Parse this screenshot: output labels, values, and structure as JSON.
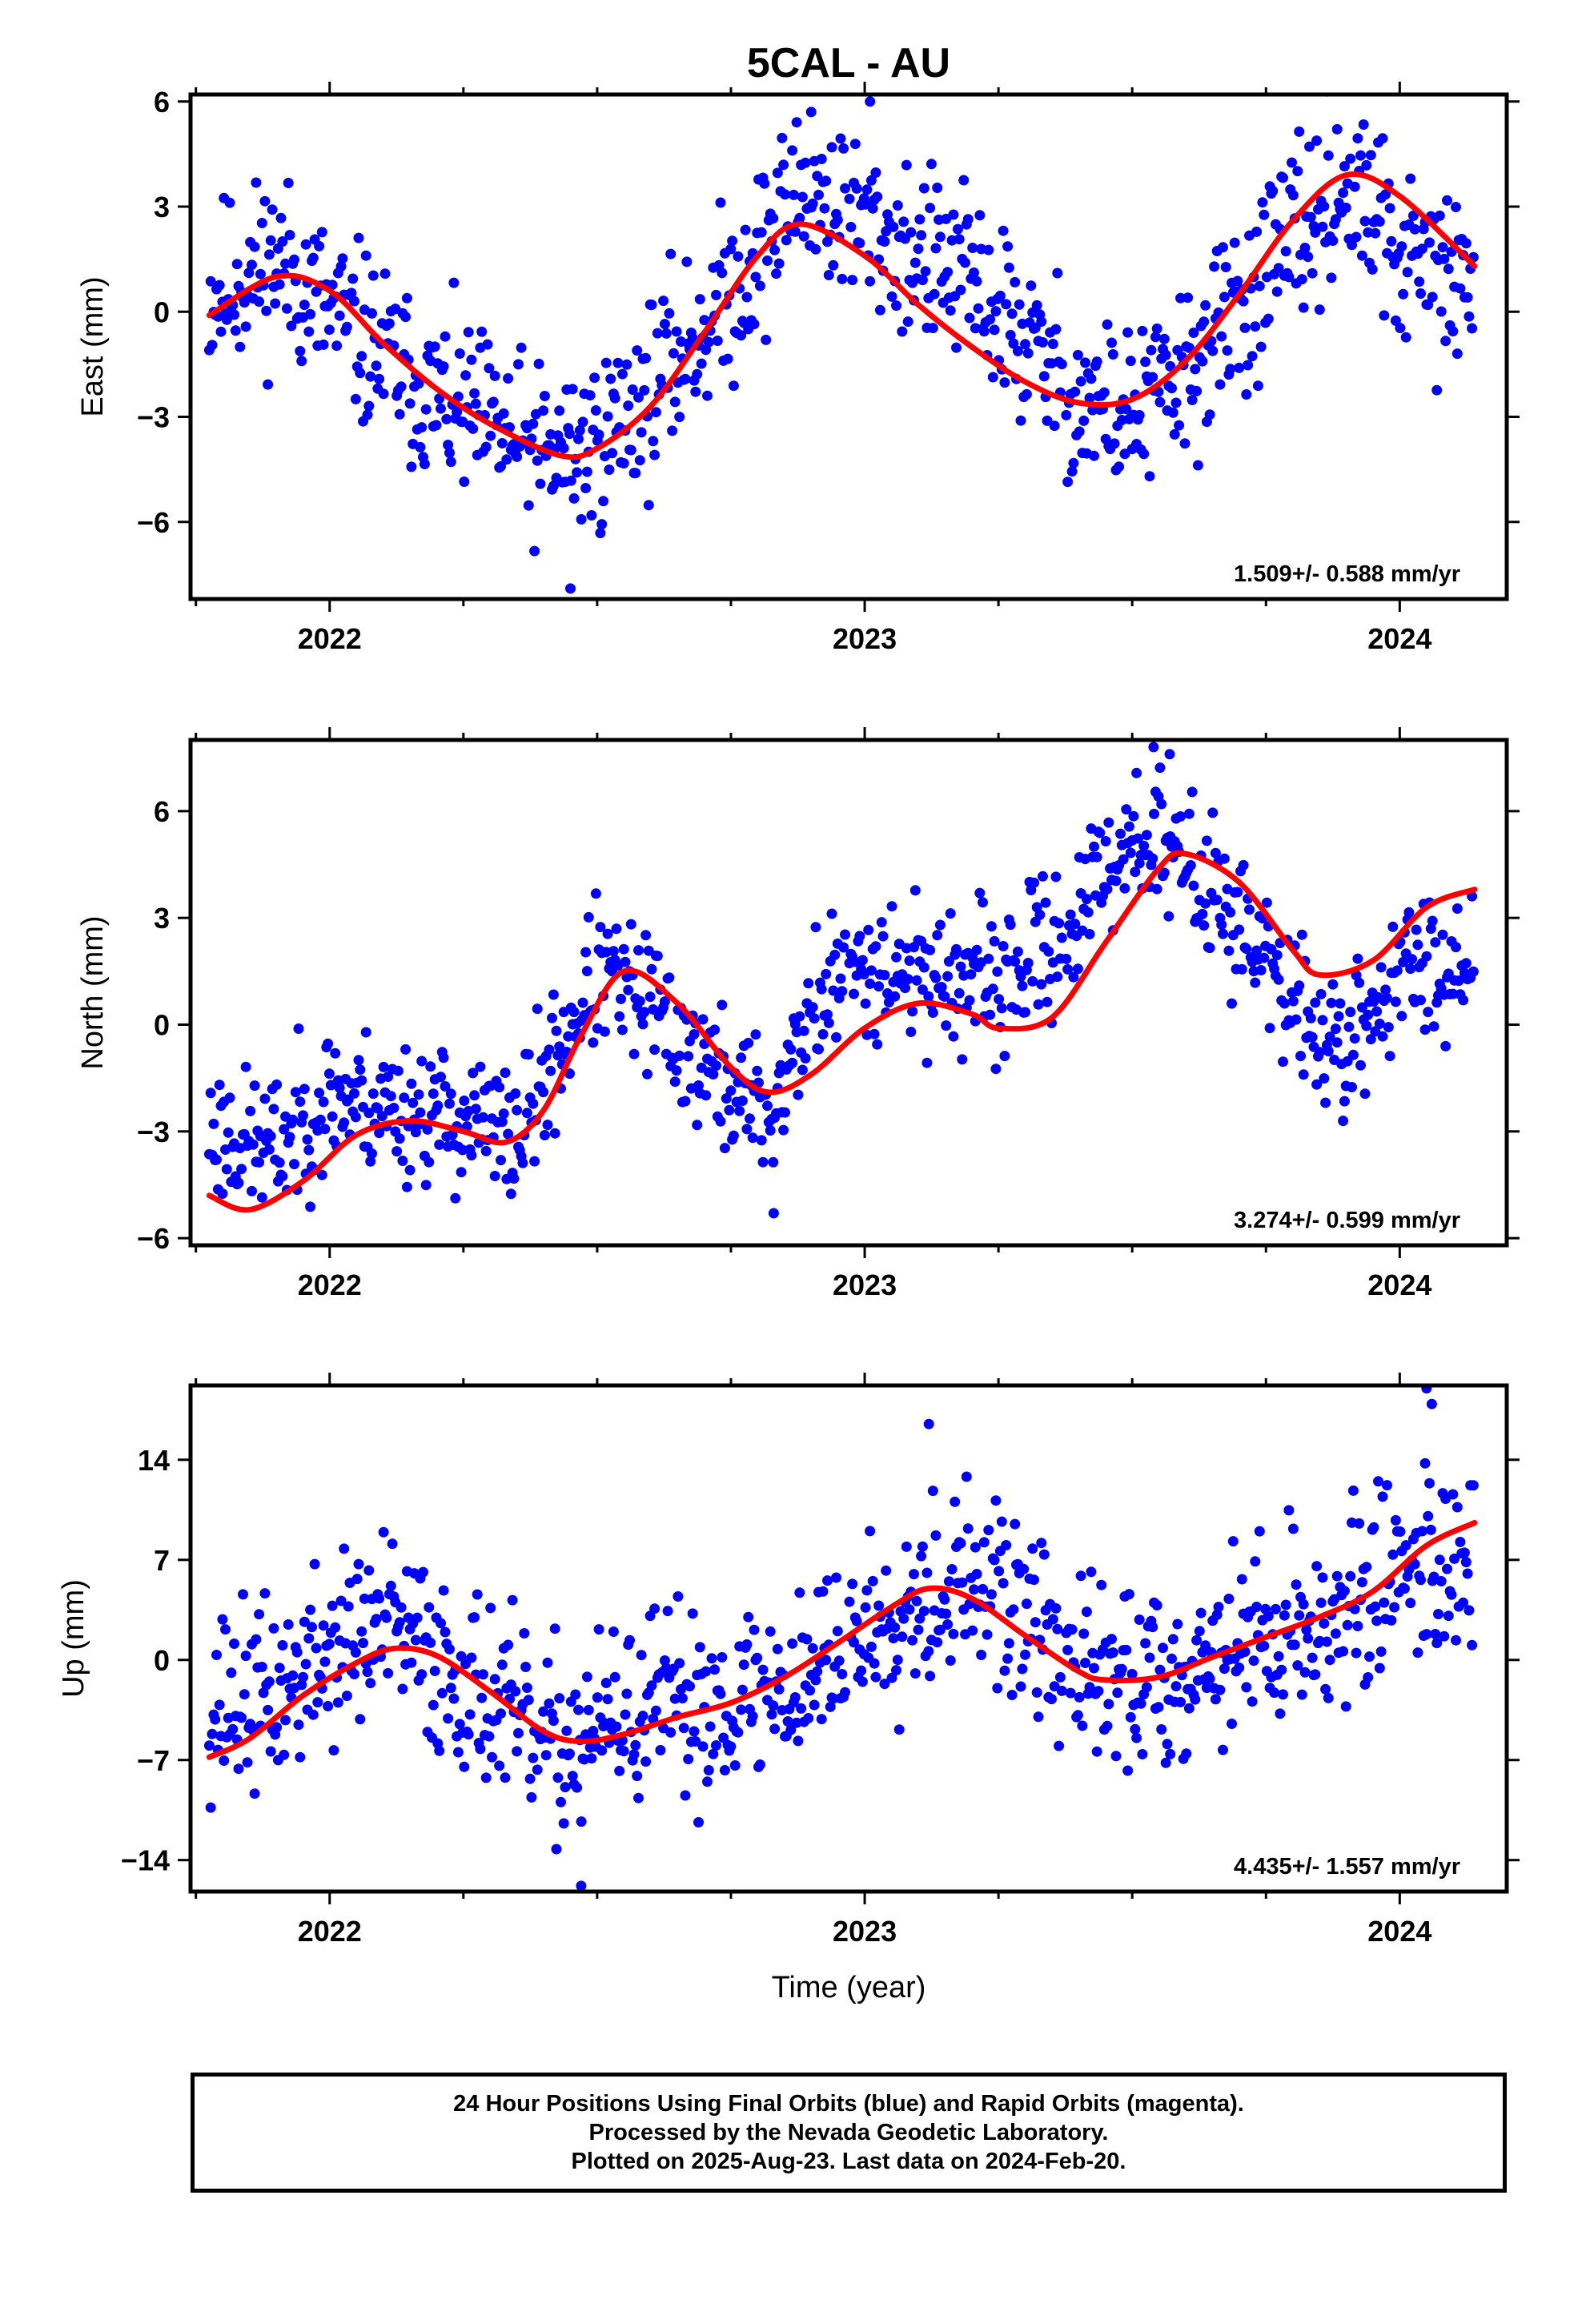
{
  "page": {
    "title": "5CAL - AU"
  },
  "colors": {
    "points": "#0000ff",
    "model": "#ff0000",
    "frame": "#000000"
  },
  "footer": {
    "lines": [
      "24 Hour Positions Using Final Orbits (blue) and Rapid Orbits (magenta).",
      "Processed by the Nevada Geodetic Laboratory.",
      "Plotted on 2025-Aug-23. Last data on 2024-Feb-20."
    ]
  },
  "chart_data": [
    {
      "type": "scatter",
      "id": "east",
      "ylabel": "East (mm)",
      "xlabel": "",
      "rate_label": "1.509+/- 0.588 mm/yr",
      "xlim": [
        2021.74,
        2024.2
      ],
      "ylim": [
        -8.2,
        6.2
      ],
      "x_ticks": [
        2022,
        2023,
        2024
      ],
      "y_ticks": [
        -6,
        -3,
        0,
        3,
        6
      ],
      "y_tick_labels": [
        "−6",
        "−3",
        "0",
        "3",
        "6"
      ],
      "series": [
        {
          "kind": "points",
          "x_start": 2021.775,
          "x_end": 2024.14,
          "gaps": [
            [
              2022.965,
              2022.97
            ],
            [
              2023.37,
              2023.375
            ]
          ],
          "scatter": 1.4,
          "seed": 11,
          "trend_x": [
            2021.775,
            2021.9,
            2022.0,
            2022.2,
            2022.4,
            2022.5,
            2022.6,
            2022.75,
            2022.88,
            2023.0,
            2023.2,
            2023.4,
            2023.5,
            2023.6,
            2023.75,
            2023.9,
            2024.0,
            2024.14
          ],
          "trend_y": [
            0.5,
            1.5,
            0.0,
            -2.5,
            -4.2,
            -3.8,
            -2.2,
            0.5,
            3.5,
            2.5,
            0.8,
            -2.5,
            -3.0,
            -1.8,
            1.0,
            3.8,
            1.5,
            0.5
          ],
          "outliers": [
            [
              2022.45,
              -7.9
            ],
            [
              2023.01,
              6.0
            ],
            [
              2022.9,
              5.7
            ]
          ]
        },
        {
          "kind": "model",
          "x": [
            2021.775,
            2021.9,
            2022.0,
            2022.1,
            2022.2,
            2022.3,
            2022.43,
            2022.5,
            2022.6,
            2022.7,
            2022.8,
            2022.88,
            2023.0,
            2023.1,
            2023.2,
            2023.3,
            2023.4,
            2023.5,
            2023.6,
            2023.7,
            2023.8,
            2023.9,
            2024.0,
            2024.14
          ],
          "y": [
            -0.1,
            1.0,
            0.6,
            -0.9,
            -2.2,
            -3.2,
            -4.1,
            -3.9,
            -2.7,
            -0.6,
            1.6,
            2.5,
            1.6,
            0.2,
            -1.0,
            -2.0,
            -2.6,
            -2.5,
            -1.4,
            0.5,
            2.6,
            3.9,
            3.3,
            1.3
          ]
        }
      ]
    },
    {
      "type": "scatter",
      "id": "north",
      "ylabel": "North (mm)",
      "xlabel": "",
      "rate_label": "3.274+/- 0.599 mm/yr",
      "xlim": [
        2021.74,
        2024.2
      ],
      "ylim": [
        -6.2,
        8.0
      ],
      "x_ticks": [
        2022,
        2023,
        2024
      ],
      "y_ticks": [
        -6,
        -3,
        0,
        3,
        6
      ],
      "y_tick_labels": [
        "−6",
        "−3",
        "0",
        "3",
        "6"
      ],
      "series": [
        {
          "kind": "points",
          "x_start": 2021.775,
          "x_end": 2024.14,
          "gaps": [
            [
              2022.965,
              2022.97
            ],
            [
              2023.37,
              2023.375
            ]
          ],
          "scatter": 1.1,
          "seed": 23,
          "trend_x": [
            2021.775,
            2021.9,
            2022.0,
            2022.2,
            2022.35,
            2022.5,
            2022.6,
            2022.72,
            2022.83,
            2022.9,
            2023.0,
            2023.1,
            2023.25,
            2023.4,
            2023.5,
            2023.6,
            2023.7,
            2023.8,
            2023.9,
            2024.0,
            2024.14
          ],
          "trend_y": [
            -3.0,
            -3.5,
            -2.0,
            -2.5,
            -3.2,
            1.5,
            0.5,
            -1.5,
            -2.5,
            0.5,
            1.8,
            1.5,
            1.0,
            3.0,
            5.5,
            4.5,
            3.0,
            0.5,
            -0.8,
            1.5,
            2.0
          ],
          "outliers": [
            [
              2022.83,
              -5.3
            ],
            [
              2023.54,
              7.8
            ],
            [
              2023.57,
              7.6
            ]
          ]
        },
        {
          "kind": "model",
          "x": [
            2021.775,
            2021.85,
            2021.95,
            2022.05,
            2022.15,
            2022.25,
            2022.33,
            2022.4,
            2022.47,
            2022.55,
            2022.65,
            2022.75,
            2022.82,
            2022.9,
            2023.0,
            2023.1,
            2023.2,
            2023.25,
            2023.35,
            2023.45,
            2023.55,
            2023.6,
            2023.7,
            2023.8,
            2023.85,
            2023.95,
            2024.05,
            2024.14
          ],
          "y": [
            -4.8,
            -5.2,
            -4.4,
            -3.1,
            -2.7,
            -3.0,
            -3.3,
            -2.4,
            -0.3,
            1.5,
            0.6,
            -1.2,
            -1.9,
            -1.4,
            -0.1,
            0.6,
            0.3,
            -0.1,
            0.2,
            2.3,
            4.4,
            4.8,
            4.0,
            2.1,
            1.4,
            1.8,
            3.3,
            3.8
          ]
        }
      ]
    },
    {
      "type": "scatter",
      "id": "up",
      "ylabel": "Up (mm)",
      "xlabel": "Time (year)",
      "rate_label": "4.435+/- 1.557 mm/yr",
      "xlim": [
        2021.74,
        2024.2
      ],
      "ylim": [
        -16.2,
        19.2
      ],
      "x_ticks": [
        2022,
        2023,
        2024
      ],
      "y_ticks": [
        -14,
        -7,
        0,
        7,
        14
      ],
      "y_tick_labels": [
        "−14",
        "−7",
        "0",
        "7",
        "14"
      ],
      "series": [
        {
          "kind": "points",
          "x_start": 2021.775,
          "x_end": 2024.14,
          "gaps": [
            [
              2022.965,
              2022.97
            ],
            [
              2023.37,
              2023.375
            ]
          ],
          "scatter": 3.6,
          "seed": 37,
          "trend_x": [
            2021.775,
            2021.9,
            2022.0,
            2022.1,
            2022.2,
            2022.3,
            2022.4,
            2022.5,
            2022.6,
            2022.7,
            2022.85,
            2023.0,
            2023.1,
            2023.2,
            2023.3,
            2023.4,
            2023.5,
            2023.6,
            2023.75,
            2023.9,
            2024.0,
            2024.14
          ],
          "trend_y": [
            -3.0,
            -2.5,
            0.5,
            2.5,
            0.0,
            -2.5,
            -6.5,
            -5.0,
            -3.5,
            -3.0,
            -2.0,
            2.0,
            5.0,
            5.5,
            3.0,
            -1.0,
            -1.5,
            -0.5,
            2.0,
            3.0,
            7.0,
            7.0
          ],
          "outliers": [
            [
              2022.47,
              -15.8
            ],
            [
              2023.12,
              16.5
            ],
            [
              2024.05,
              19.0
            ],
            [
              2024.06,
              17.9
            ]
          ]
        },
        {
          "kind": "model",
          "x": [
            2021.775,
            2021.85,
            2021.95,
            2022.05,
            2022.12,
            2022.2,
            2022.3,
            2022.4,
            2022.47,
            2022.55,
            2022.65,
            2022.75,
            2022.85,
            2022.95,
            2023.05,
            2023.12,
            2023.2,
            2023.3,
            2023.4,
            2023.45,
            2023.55,
            2023.65,
            2023.75,
            2023.85,
            2023.95,
            2024.05,
            2024.14
          ],
          "y": [
            -6.8,
            -5.5,
            -2.5,
            -0.2,
            0.8,
            0.3,
            -2.2,
            -5.0,
            -5.7,
            -5.2,
            -4.0,
            -3.0,
            -1.2,
            1.2,
            3.7,
            5.0,
            4.3,
            1.7,
            -0.8,
            -1.4,
            -1.2,
            0.2,
            1.6,
            3.0,
            4.8,
            8.0,
            9.6
          ]
        }
      ]
    }
  ]
}
